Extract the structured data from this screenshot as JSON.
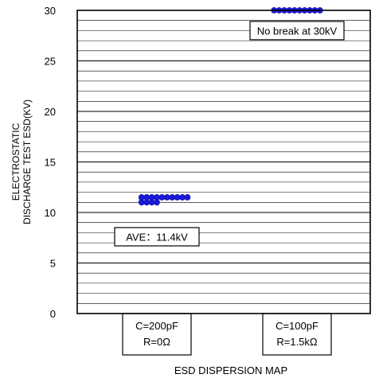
{
  "chart_data": {
    "type": "scatter",
    "ylabel_lines": [
      "ELECTROSTATIC",
      "DISCHARGE TEST ESD(KV)"
    ],
    "xlabel": "ESD DISPERSION MAP",
    "ylim": [
      0,
      30
    ],
    "y_ticks": [
      0,
      5,
      10,
      15,
      20,
      25,
      30
    ],
    "minor_grid_step": 1,
    "grid": true,
    "marker_color": "#1a1adb",
    "categories": [
      {
        "lines": [
          "C=200pF",
          "R=0Ω"
        ]
      },
      {
        "lines": [
          "C=100pF",
          "R=1.5kΩ"
        ]
      }
    ],
    "series": [
      {
        "category_index": 0,
        "values": [
          11,
          11,
          11,
          11,
          11.5,
          11.5,
          11.5,
          11.5,
          11.5,
          11.5,
          11.5,
          11.5,
          11.5,
          11.5
        ],
        "x_offsets": [
          -3,
          -2,
          -1,
          0,
          -3,
          -2,
          -1,
          0,
          1,
          2,
          3,
          4,
          5,
          6
        ]
      },
      {
        "category_index": 1,
        "values": [
          30,
          30,
          30,
          30,
          30,
          30,
          30,
          30,
          30,
          30
        ],
        "x_offsets": [
          -4.5,
          -3.5,
          -2.5,
          -1.5,
          -0.5,
          0.5,
          1.5,
          2.5,
          3.5,
          4.5
        ]
      }
    ],
    "annotations": [
      {
        "text": "No break at 30kV",
        "category_index": 1,
        "y": 28
      },
      {
        "text": "AVE：11.4kV",
        "category_index": 0,
        "y": 7.6
      }
    ]
  }
}
